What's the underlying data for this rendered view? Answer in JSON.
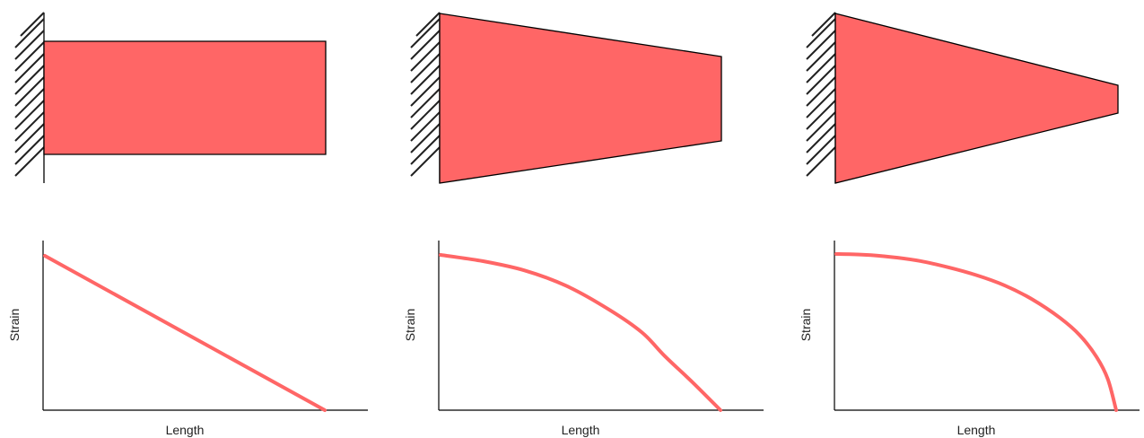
{
  "colors": {
    "beam_fill": "#FF6666",
    "outline": "#000000",
    "curve": "#FF6666",
    "hatch": "#222222",
    "text": "#222222"
  },
  "panels": [
    {
      "beam_shape": "uniform-rectangle",
      "chart_data": {
        "type": "line",
        "xlabel": "Length",
        "ylabel": "Strain",
        "series": [
          {
            "x": [
              0,
              1
            ],
            "y": [
              1,
              0
            ]
          }
        ]
      }
    },
    {
      "beam_shape": "linear-taper",
      "chart_data": {
        "type": "line",
        "xlabel": "Length",
        "ylabel": "Strain",
        "series": [
          {
            "x": [
              0,
              0.15,
              0.3,
              0.45,
              0.6,
              0.72,
              0.8,
              0.9,
              1
            ],
            "y": [
              1,
              0.96,
              0.9,
              0.8,
              0.65,
              0.5,
              0.35,
              0.18,
              0
            ]
          }
        ]
      }
    },
    {
      "beam_shape": "steep-taper",
      "chart_data": {
        "type": "line",
        "xlabel": "Length",
        "ylabel": "Strain",
        "series": [
          {
            "x": [
              0,
              0.1,
              0.2,
              0.3,
              0.4,
              0.5,
              0.6,
              0.7,
              0.8,
              0.87,
              0.93,
              0.97,
              1
            ],
            "y": [
              1,
              0.995,
              0.98,
              0.955,
              0.915,
              0.865,
              0.8,
              0.71,
              0.59,
              0.48,
              0.34,
              0.2,
              0
            ]
          }
        ]
      }
    }
  ]
}
